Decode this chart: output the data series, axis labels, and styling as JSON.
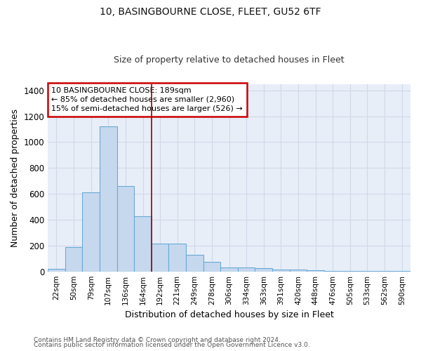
{
  "title_line1": "10, BASINGBOURNE CLOSE, FLEET, GU52 6TF",
  "title_line2": "Size of property relative to detached houses in Fleet",
  "xlabel": "Distribution of detached houses by size in Fleet",
  "ylabel": "Number of detached properties",
  "categories": [
    "22sqm",
    "50sqm",
    "79sqm",
    "107sqm",
    "136sqm",
    "164sqm",
    "192sqm",
    "221sqm",
    "249sqm",
    "278sqm",
    "306sqm",
    "334sqm",
    "363sqm",
    "391sqm",
    "420sqm",
    "448sqm",
    "476sqm",
    "505sqm",
    "533sqm",
    "562sqm",
    "590sqm"
  ],
  "values": [
    20,
    190,
    610,
    1120,
    660,
    425,
    215,
    215,
    130,
    75,
    30,
    30,
    25,
    15,
    12,
    10,
    5,
    5,
    3,
    2,
    2
  ],
  "bar_color": "#c5d8ee",
  "bar_edge_color": "#6aaad4",
  "annotation_property": "10 BASINGBOURNE CLOSE: 189sqm",
  "annotation_line2": "← 85% of detached houses are smaller (2,960)",
  "annotation_line3": "15% of semi-detached houses are larger (526) →",
  "annotation_box_color": "white",
  "annotation_box_edge": "#cc0000",
  "property_line_x": 5.5,
  "property_line_color": "#990000",
  "ylim": [
    0,
    1450
  ],
  "yticks": [
    0,
    200,
    400,
    600,
    800,
    1000,
    1200,
    1400
  ],
  "background_color": "#e8eef8",
  "grid_color": "#d0d8e8",
  "footnote_line1": "Contains HM Land Registry data © Crown copyright and database right 2024.",
  "footnote_line2": "Contains public sector information licensed under the Open Government Licence v3.0."
}
